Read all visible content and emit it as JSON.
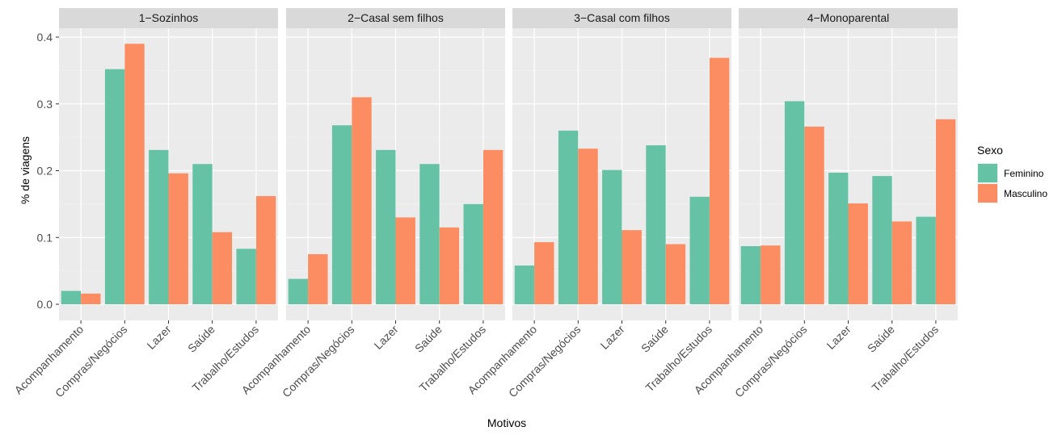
{
  "chart_data": {
    "type": "bar",
    "xlabel": "Motivos",
    "ylabel": "% de viagens",
    "ylim": [
      0,
      0.4
    ],
    "yticks": [
      "0.0",
      "0.1",
      "0.2",
      "0.3",
      "0.4"
    ],
    "categories": [
      "Acompanhamento",
      "Compras/Negócios",
      "Lazer",
      "Saúde",
      "Trabalho/Estudos"
    ],
    "legend": {
      "title": "Sexo",
      "position": "right",
      "items": [
        {
          "name": "Feminino",
          "color": "#66c2a5"
        },
        {
          "name": "Masculino",
          "color": "#fc8d62"
        }
      ]
    },
    "grid": true,
    "panels": [
      {
        "title": "1−Sozinhos",
        "series": [
          {
            "name": "Feminino",
            "values": [
              0.02,
              0.352,
              0.231,
              0.21,
              0.083
            ]
          },
          {
            "name": "Masculino",
            "values": [
              0.016,
              0.39,
              0.196,
              0.108,
              0.162
            ]
          }
        ]
      },
      {
        "title": "2−Casal sem filhos",
        "series": [
          {
            "name": "Feminino",
            "values": [
              0.038,
              0.268,
              0.231,
              0.21,
              0.15
            ]
          },
          {
            "name": "Masculino",
            "values": [
              0.075,
              0.31,
              0.13,
              0.115,
              0.231
            ]
          }
        ]
      },
      {
        "title": "3−Casal com filhos",
        "series": [
          {
            "name": "Feminino",
            "values": [
              0.058,
              0.26,
              0.201,
              0.238,
              0.161
            ]
          },
          {
            "name": "Masculino",
            "values": [
              0.093,
              0.233,
              0.111,
              0.09,
              0.369
            ]
          }
        ]
      },
      {
        "title": "4−Monoparental",
        "series": [
          {
            "name": "Feminino",
            "values": [
              0.087,
              0.304,
              0.197,
              0.192,
              0.131
            ]
          },
          {
            "name": "Masculino",
            "values": [
              0.088,
              0.266,
              0.151,
              0.124,
              0.277
            ]
          }
        ]
      }
    ]
  }
}
